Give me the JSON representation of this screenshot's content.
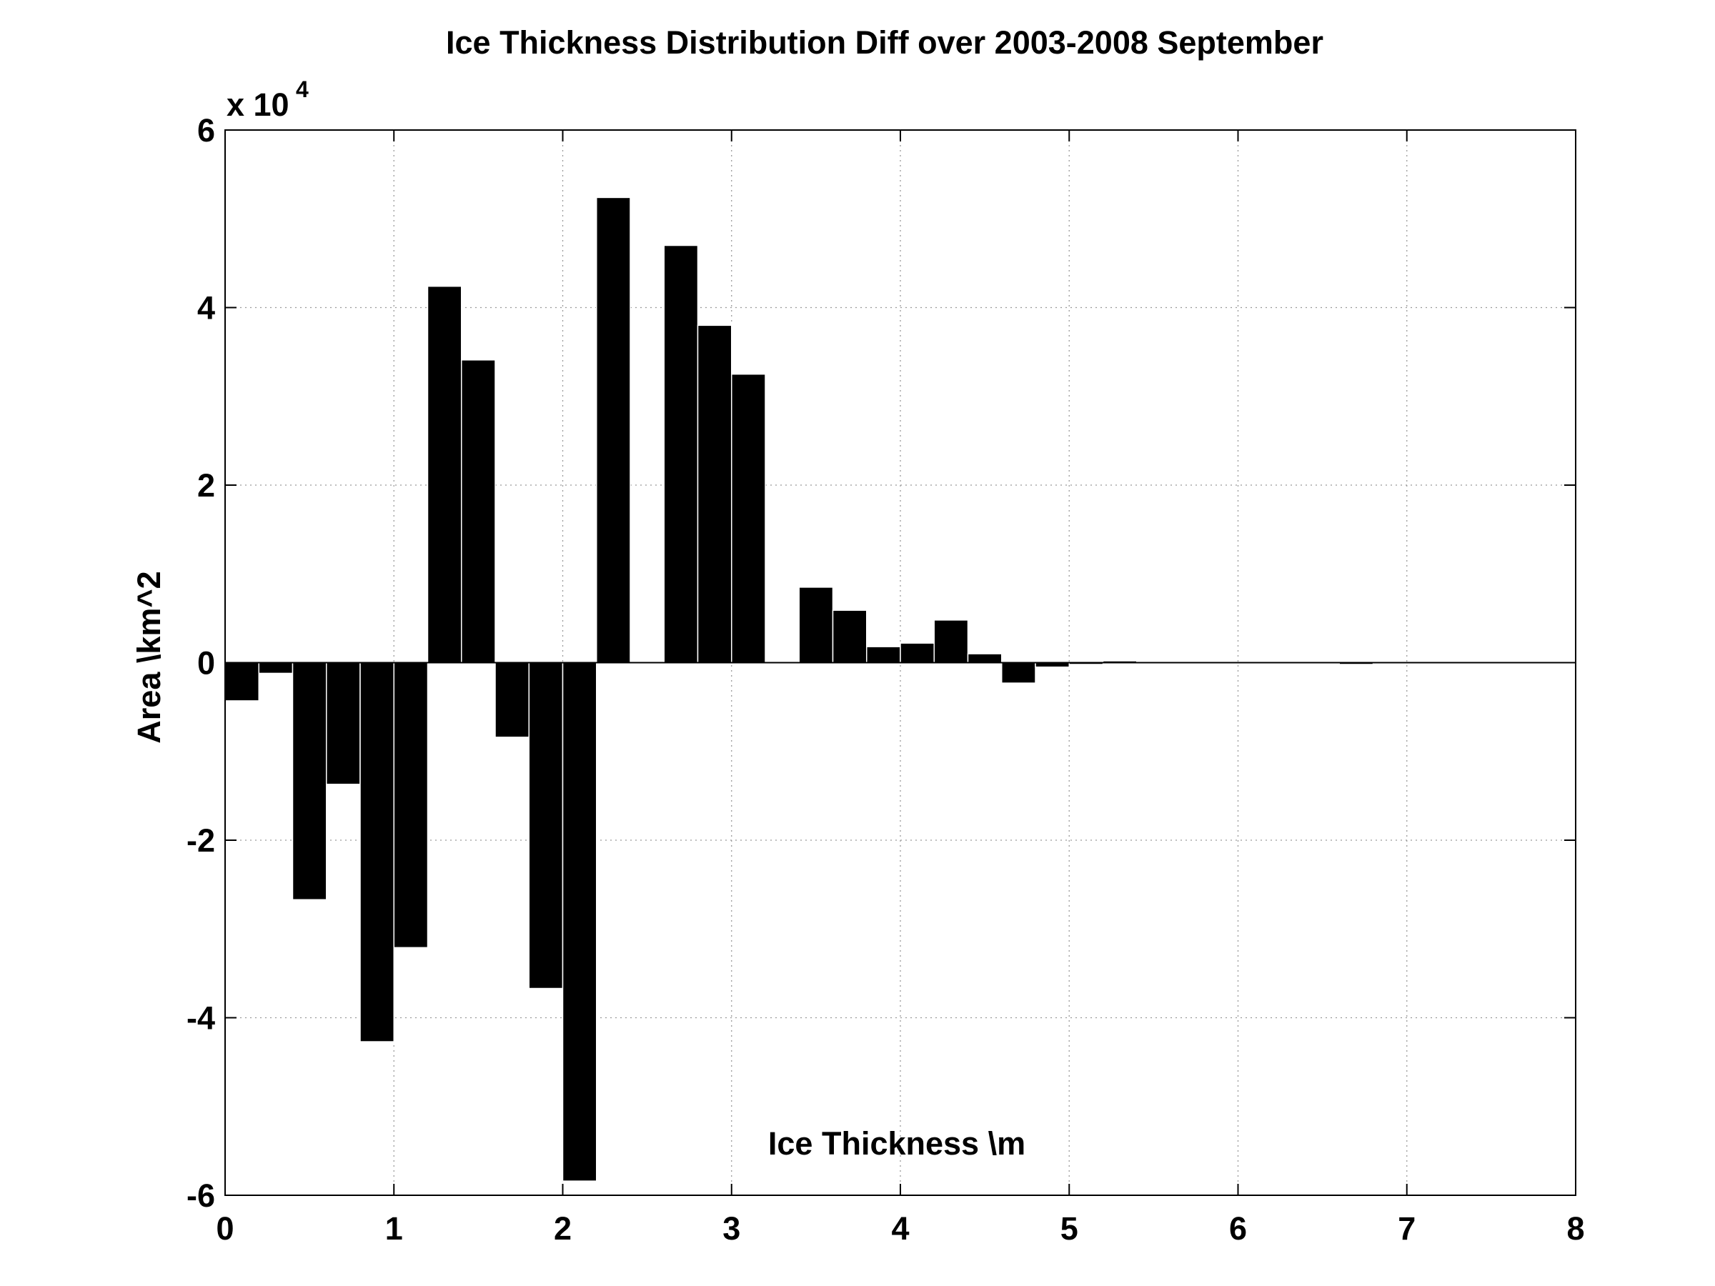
{
  "chart_data": {
    "type": "bar",
    "title": "Ice Thickness Distribution Diff over 2003-2008 September",
    "xlabel": "Ice Thickness \\m",
    "ylabel": "Area \\km^2",
    "y_multiplier": {
      "base": "x 10",
      "exponent": "4"
    },
    "xlim": [
      0,
      8
    ],
    "ylim": [
      -6,
      6
    ],
    "x_ticks": [
      0,
      1,
      2,
      3,
      4,
      5,
      6,
      7,
      8
    ],
    "y_ticks": [
      -6,
      -4,
      -2,
      0,
      2,
      4,
      6
    ],
    "grid": true,
    "bar_width": 0.2,
    "x": [
      0.1,
      0.3,
      0.5,
      0.7,
      0.9,
      1.1,
      1.3,
      1.5,
      1.7,
      1.9,
      2.1,
      2.3,
      2.5,
      2.7,
      2.9,
      3.1,
      3.3,
      3.5,
      3.7,
      3.9,
      4.1,
      4.3,
      4.5,
      4.7,
      4.9,
      5.1,
      5.3,
      5.5,
      5.7,
      5.9,
      6.1,
      6.3,
      6.5,
      6.7,
      6.9,
      7.1,
      7.3,
      7.5,
      7.7,
      7.9
    ],
    "values": [
      -0.43,
      -0.12,
      -2.67,
      -1.37,
      -4.27,
      -3.21,
      4.24,
      3.41,
      -0.84,
      -3.67,
      -5.84,
      5.24,
      0,
      4.7,
      3.8,
      3.25,
      0,
      0.85,
      0.59,
      0.18,
      0.22,
      0.48,
      0.1,
      -0.23,
      -0.05,
      -0.02,
      0.02,
      0,
      0,
      0,
      -0.01,
      0,
      0,
      -0.02,
      0,
      0,
      0,
      0,
      0,
      0
    ],
    "colors": {
      "bar": "#000000",
      "axis": "#000000",
      "grid": "#999999",
      "background": "#ffffff"
    }
  }
}
